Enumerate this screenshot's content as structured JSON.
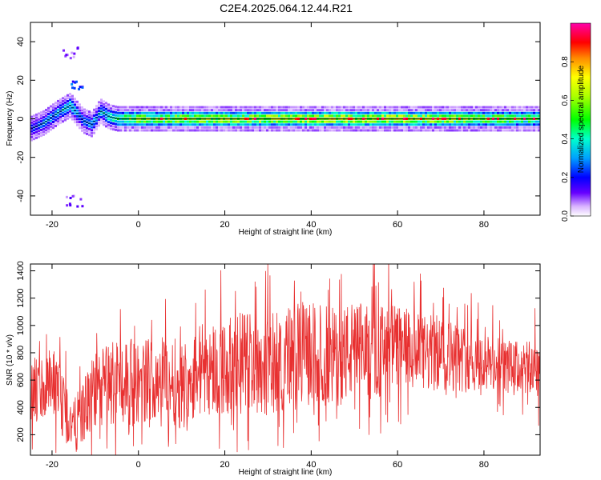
{
  "title": "C2E4.2025.064.12.44.R21",
  "chart_data": [
    {
      "type": "heatmap",
      "xlabel": "Height of straight line (km)",
      "ylabel": "Frequency (Hz)",
      "xlim": [
        -25,
        93
      ],
      "ylim": [
        -50,
        50
      ],
      "xticks": [
        -20,
        0,
        20,
        40,
        60,
        80
      ],
      "yticks": [
        -40,
        -20,
        0,
        20,
        40
      ],
      "colorbar": {
        "label": "Normalized spectral amplitude",
        "range": [
          0,
          1
        ],
        "ticks": [
          0.0,
          0.2,
          0.4,
          0.6,
          0.8
        ],
        "tick_labels": [
          "0.0",
          "0.2",
          "0.4",
          "0.6",
          "0.8"
        ]
      },
      "ridge": {
        "x": [
          -25,
          -22,
          -19,
          -16,
          -13,
          -11,
          -9,
          -7,
          -5,
          0,
          20,
          40,
          60,
          80,
          93
        ],
        "y": [
          -5,
          -2,
          3,
          7,
          -1,
          -3,
          4,
          1,
          0,
          0,
          0,
          0,
          0,
          0,
          0
        ],
        "amplitude": [
          0.25,
          0.35,
          0.4,
          0.45,
          0.3,
          0.35,
          0.4,
          0.5,
          0.6,
          0.7,
          0.75,
          0.8,
          0.8,
          0.7,
          0.6
        ]
      },
      "features": [
        {
          "x": -15,
          "y": 17,
          "amplitude": 0.2
        },
        {
          "x": -16,
          "y": 35,
          "amplitude": 0.1
        },
        {
          "x": -15,
          "y": -42,
          "amplitude": 0.1
        }
      ]
    },
    {
      "type": "line",
      "xlabel": "Height of straight line (km)",
      "ylabel": "SNR (10 * v/v)",
      "xlim": [
        -25,
        93
      ],
      "ylim": [
        50,
        1450
      ],
      "xticks": [
        -20,
        0,
        20,
        40,
        60,
        80
      ],
      "yticks": [
        200,
        400,
        600,
        800,
        1000,
        1200,
        1400
      ],
      "line_color": "#e83030",
      "series": [
        {
          "x": [
            -25,
            -20,
            -15,
            -10,
            -5,
            0,
            5,
            10,
            15,
            20,
            25,
            30,
            35,
            40,
            45,
            50,
            55,
            60,
            65,
            70,
            75,
            80,
            85,
            90,
            93
          ],
          "values": [
            500,
            550,
            250,
            520,
            600,
            580,
            640,
            560,
            700,
            680,
            760,
            700,
            780,
            800,
            760,
            820,
            800,
            850,
            780,
            800,
            760,
            720,
            700,
            680,
            700
          ],
          "spread": [
            250,
            300,
            200,
            280,
            350,
            300,
            320,
            320,
            350,
            350,
            380,
            380,
            380,
            380,
            380,
            360,
            350,
            320,
            300,
            280,
            250,
            220,
            200,
            200,
            250
          ]
        }
      ]
    }
  ]
}
